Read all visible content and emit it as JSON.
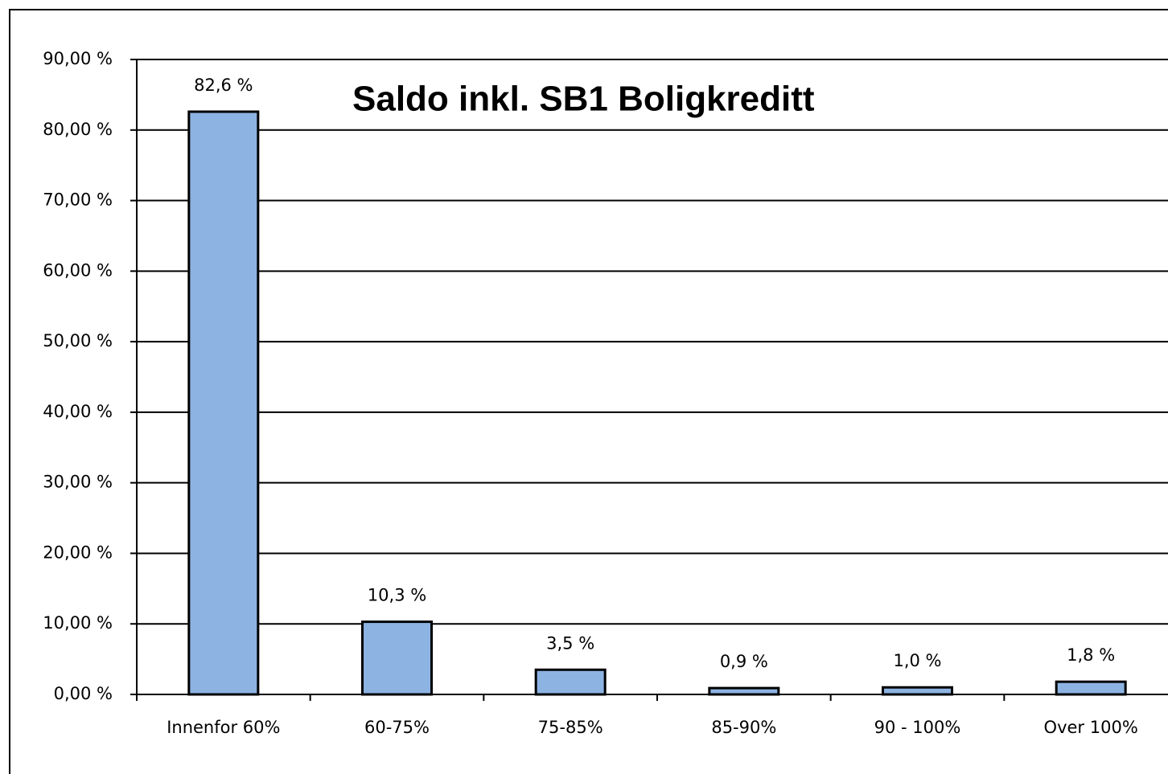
{
  "chart_data": {
    "type": "bar",
    "title": "Saldo inkl. SB1 Boligkreditt",
    "categories": [
      "Innenfor 60%",
      "60-75%",
      "75-85%",
      "85-90%",
      "90 - 100%",
      "Over 100%"
    ],
    "values": [
      82.6,
      10.3,
      3.5,
      0.9,
      1.0,
      1.8
    ],
    "value_labels": [
      "82,6 %",
      "10,3 %",
      "3,5 %",
      "0,9 %",
      "1,0 %",
      "1,8 %"
    ],
    "color": "#8db3e2",
    "ylim": [
      0,
      90
    ],
    "yticks": [
      {
        "value": 0,
        "label": "0,00 %"
      },
      {
        "value": 10,
        "label": "10,00 %"
      },
      {
        "value": 20,
        "label": "20,00 %"
      },
      {
        "value": 30,
        "label": "30,00 %"
      },
      {
        "value": 40,
        "label": "40,00 %"
      },
      {
        "value": 50,
        "label": "50,00 %"
      },
      {
        "value": 60,
        "label": "60,00 %"
      },
      {
        "value": 70,
        "label": "70,00 %"
      },
      {
        "value": 80,
        "label": "80,00 %"
      },
      {
        "value": 90,
        "label": "90,00 %"
      }
    ],
    "grid": true
  }
}
